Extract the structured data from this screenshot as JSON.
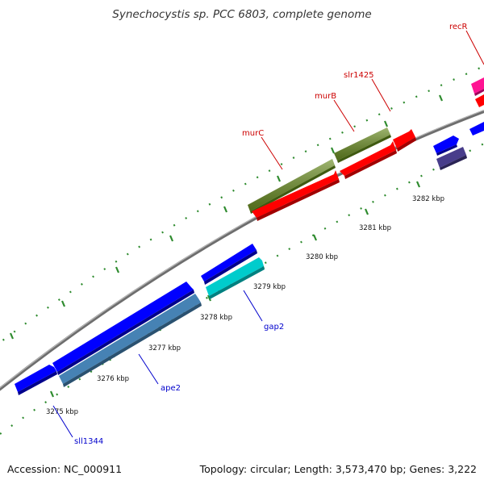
{
  "title": "Synechocystis sp. PCC 6803, complete genome",
  "footer": {
    "accession": "Accession: NC_000911",
    "summary": "Topology: circular; Length: 3,573,470 bp; Genes: 3,222"
  },
  "colors": {
    "backbone": "#777777",
    "tick": "#2e8b2e",
    "label_red": "#cc0000",
    "label_blue": "#0000cc"
  },
  "kbp_labels": [
    "3275 kbp",
    "3276 kbp",
    "3277 kbp",
    "3278 kbp",
    "3279 kbp",
    "3280 kbp",
    "3281 kbp",
    "3282 kbp"
  ],
  "gene_labels": {
    "murC": "murC",
    "murB": "murB",
    "slr1425": "slr1425",
    "recR": "recR",
    "gap2": "gap2",
    "ape2": "ape2",
    "sll1344": "sll1344"
  }
}
